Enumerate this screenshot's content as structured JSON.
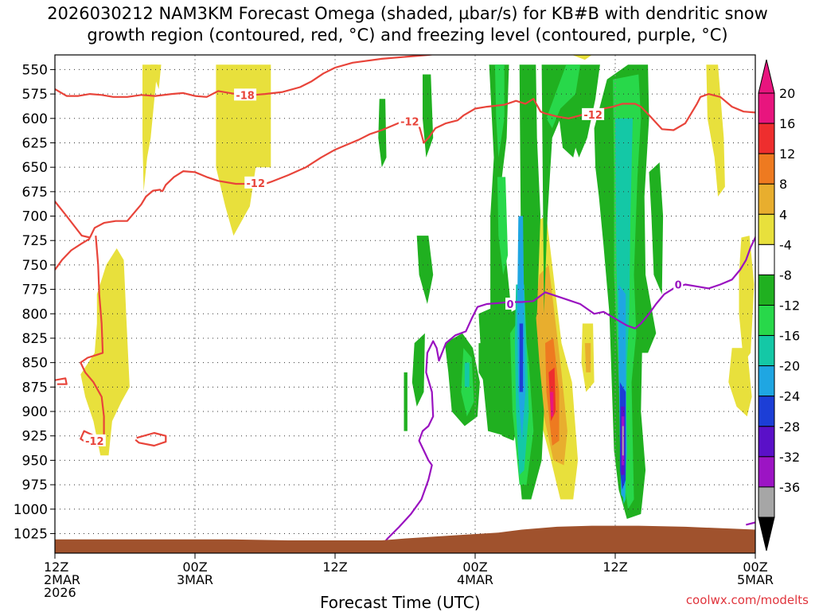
{
  "title_line1": "2026030212  NAM3KM Forecast Omega (shaded, µbar/s) for KB#B with dendritic snow",
  "title_line2": "growth region (contoured, red, °C) and freezing level (contoured, purple, °C)",
  "credit": "coolwx.com/modelts",
  "chart_data": {
    "type": "heatmap",
    "title": "2026030212 NAM3KM Forecast Omega (shaded, µbar/s) for KB#B with dendritic snow growth region (contoured, red, °C) and freezing level (contoured, purple, °C)",
    "xlabel": "Forecast Time (UTC)",
    "ylabel": "",
    "x_range_hours": [
      0,
      60
    ],
    "x_ticks": [
      {
        "hour": 0,
        "line1": "12Z",
        "line2": "2MAR",
        "line3": "2026"
      },
      {
        "hour": 12,
        "line1": "00Z",
        "line2": "3MAR",
        "line3": ""
      },
      {
        "hour": 24,
        "line1": "12Z",
        "line2": "",
        "line3": ""
      },
      {
        "hour": 36,
        "line1": "00Z",
        "line2": "4MAR",
        "line3": ""
      },
      {
        "hour": 48,
        "line1": "12Z",
        "line2": "",
        "line3": ""
      },
      {
        "hour": 60,
        "line1": "00Z",
        "line2": "5MAR",
        "line3": ""
      }
    ],
    "y_range_hPa": [
      535,
      1045
    ],
    "y_ticks": [
      550,
      575,
      600,
      625,
      650,
      675,
      700,
      725,
      750,
      775,
      800,
      825,
      850,
      875,
      900,
      925,
      950,
      975,
      1000,
      1025
    ],
    "grid": true,
    "colorbar": {
      "placement": "right",
      "levels": [
        {
          "label": "20",
          "color": "#e8157e"
        },
        {
          "label": "16",
          "color": "#ee2e2e"
        },
        {
          "label": "12",
          "color": "#ee7a20"
        },
        {
          "label": "8",
          "color": "#e8ae2e"
        },
        {
          "label": "4",
          "color": "#e8e03c"
        },
        {
          "label": "-4",
          "color": "#ffffff"
        },
        {
          "label": "-8",
          "color": "#20b020"
        },
        {
          "label": "-12",
          "color": "#28d84a"
        },
        {
          "label": "-16",
          "color": "#14c8a6"
        },
        {
          "label": "-20",
          "color": "#1fa6e2"
        },
        {
          "label": "-24",
          "color": "#1c3ed6"
        },
        {
          "label": "-28",
          "color": "#5a10c8"
        },
        {
          "label": "-32",
          "color": "#9c14c4"
        },
        {
          "label": "-36",
          "color": "#a6a6a6"
        }
      ],
      "below_color": "#000000",
      "above_color": "#e8157e"
    },
    "contour_labels": [
      {
        "text": "-18",
        "hour": 16.3,
        "p": 576,
        "color": "#e8443a"
      },
      {
        "text": "-12",
        "hour": 30.4,
        "p": 603,
        "color": "#e8443a"
      },
      {
        "text": "-12",
        "hour": 17.2,
        "p": 666,
        "color": "#e8443a"
      },
      {
        "text": "-12",
        "hour": 46.1,
        "p": 596,
        "color": "#e8443a"
      },
      {
        "text": "-12",
        "hour": 3.4,
        "p": 930,
        "color": "#e8443a"
      },
      {
        "text": "0",
        "hour": 39.0,
        "p": 790,
        "color": "#9a12c0"
      },
      {
        "text": "0",
        "hour": 53.4,
        "p": 770,
        "color": "#9a12c0"
      }
    ],
    "terrain_color": "#a0522d",
    "dgz_contour_color": "#e8443a",
    "freezing_contour_color": "#9a12c0"
  }
}
